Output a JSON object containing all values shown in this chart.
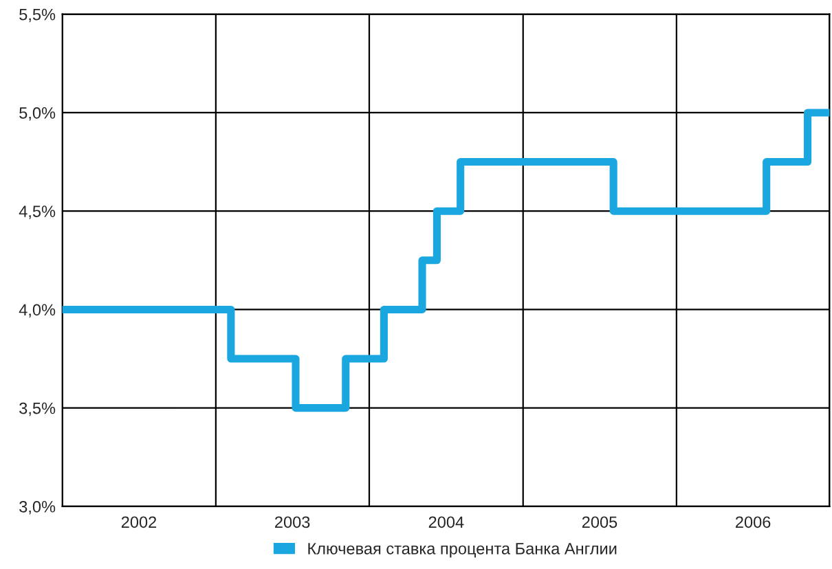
{
  "chart_data": {
    "type": "step",
    "x": [
      "2002-01-01",
      "2003-02-06",
      "2003-07-10",
      "2003-11-06",
      "2004-02-05",
      "2004-05-06",
      "2004-06-10",
      "2004-08-05",
      "2005-08-04",
      "2006-08-03",
      "2006-11-09",
      "2006-12-31"
    ],
    "series": [
      {
        "name": "Ключевая ставка процента Банка Англии",
        "color": "#1aa7e0",
        "values": [
          4.0,
          3.75,
          3.5,
          3.75,
          4.0,
          4.25,
          4.5,
          4.75,
          4.5,
          4.75,
          5.0,
          5.0
        ]
      }
    ],
    "xlim": [
      "2002-01-01",
      "2006-12-31"
    ],
    "xticks": [
      {
        "value": "2002-01-01",
        "label": null
      },
      {
        "value": "2002-07-02",
        "label": "2002"
      },
      {
        "value": "2003-01-01",
        "label": null
      },
      {
        "value": "2003-07-02",
        "label": "2003"
      },
      {
        "value": "2004-01-01",
        "label": null
      },
      {
        "value": "2004-07-02",
        "label": "2004"
      },
      {
        "value": "2005-01-01",
        "label": null
      },
      {
        "value": "2005-07-02",
        "label": "2005"
      },
      {
        "value": "2006-01-01",
        "label": null
      },
      {
        "value": "2006-07-02",
        "label": "2006"
      },
      {
        "value": "2006-12-31",
        "label": null
      }
    ],
    "ylim": [
      3.0,
      5.5
    ],
    "yticks": [
      {
        "value": 3.0,
        "label": "3,0%"
      },
      {
        "value": 3.5,
        "label": "3,5%"
      },
      {
        "value": 4.0,
        "label": "4,0%"
      },
      {
        "value": 4.5,
        "label": "4,5%"
      },
      {
        "value": 5.0,
        "label": "5,0%"
      },
      {
        "value": 5.5,
        "label": "5,5%"
      }
    ],
    "grid": true,
    "legend": "bottom",
    "line_style": "solid"
  }
}
